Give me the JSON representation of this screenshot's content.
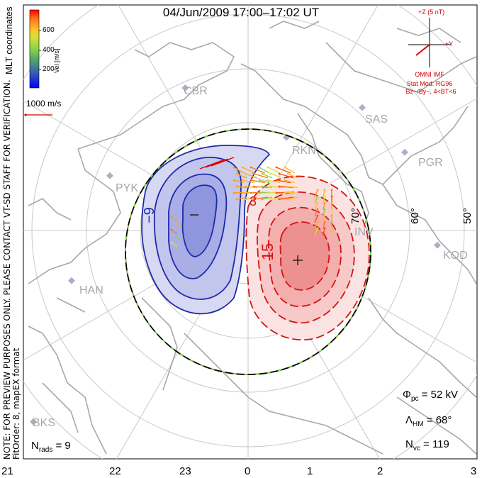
{
  "title": "04/Jun/2009 17:00–17:02 UT",
  "note_line1": "NOTE: FOR PREVIEW PURPOSES ONLY. PLEASE CONTACT VT-SD STAFF FOR VERIFICATION.",
  "note_line2": "FitOrder: 8,  mapEX format",
  "coord_label": "MLT coordinates",
  "colorbar": {
    "unit": "Vel [m/s]",
    "ticks": [
      "600",
      "400",
      "200"
    ],
    "colors": [
      "#0000ff",
      "#3a5fb0",
      "#4aa36a",
      "#8bd24a",
      "#d6e23a",
      "#ffc02a",
      "#ff7a18",
      "#ff0000"
    ]
  },
  "vector_scale": "1000 m/s",
  "imf": {
    "bz": "+Z (5 nT)",
    "by": "+Y",
    "source": "OMNI IMF",
    "model": "Stat Mod: RG96",
    "model_detail": "Bz−/By−, 4<BT<6"
  },
  "stats": {
    "n_rads_label": "N",
    "n_rads_sub": "rads",
    "n_rads": "= 9",
    "phi_label": "Φ",
    "phi_sub": "pc",
    "phi": "= 52 kV",
    "lambda_label": "Λ",
    "lambda_sub": "HM",
    "lambda": "= 68°",
    "nvc_label": "N",
    "nvc_sub": "vc",
    "nvc": "= 119"
  },
  "mlt_labels": [
    "21",
    "22",
    "23",
    "0",
    "1",
    "2",
    "3"
  ],
  "lat_labels": [
    "50°",
    "60°",
    "70°"
  ],
  "sites": [
    "CBR",
    "SAS",
    "RKN",
    "PGR",
    "PYK",
    "INV",
    "KOD",
    "HAN",
    "BKS"
  ],
  "contours": {
    "min_label": "−9",
    "max_label": "15",
    "min_marker": "−",
    "max_marker": "+"
  },
  "colors": {
    "negative_cell": "#1f2aa8",
    "positive_cell": "#d41414",
    "hmb": "#7ed23a"
  }
}
